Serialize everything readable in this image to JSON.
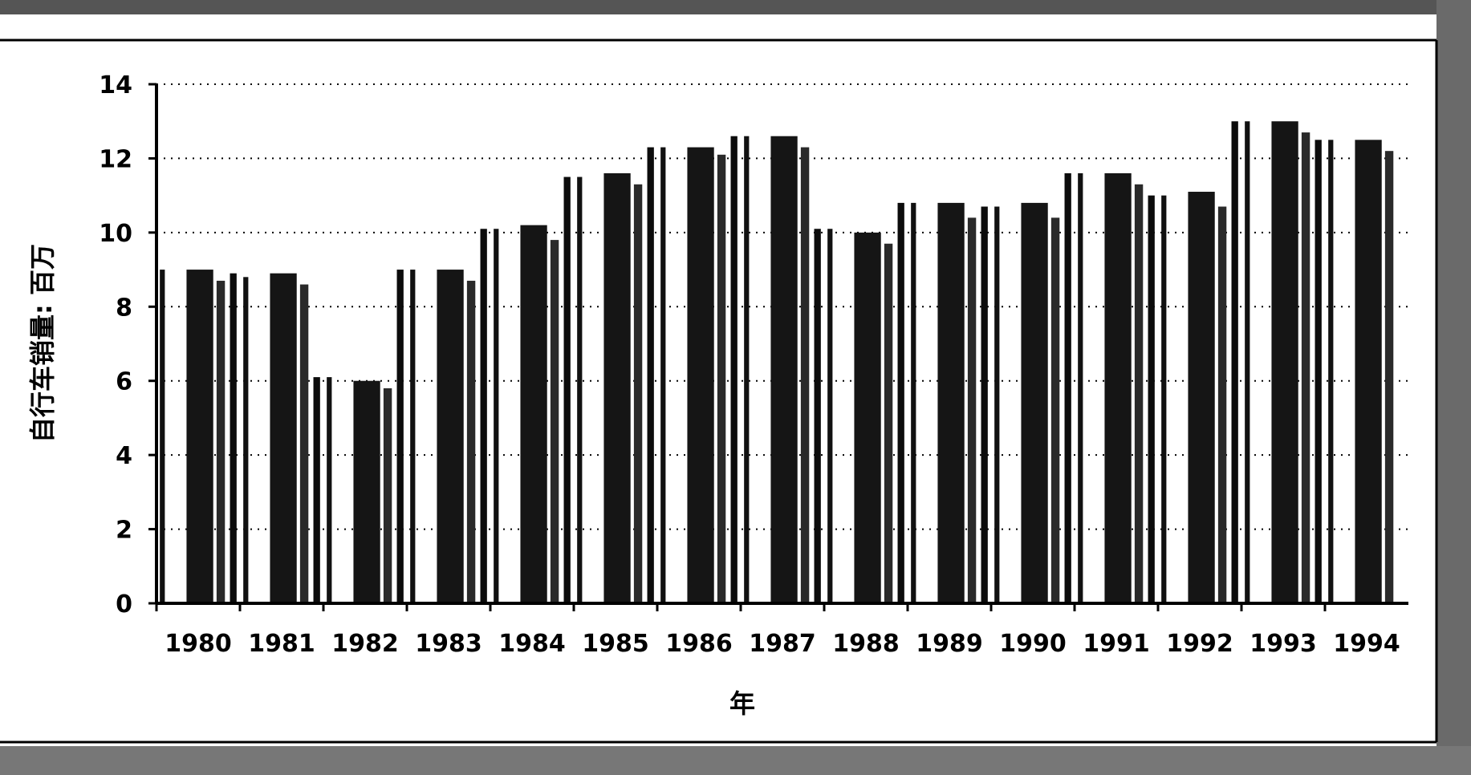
{
  "chart_data": {
    "type": "bar",
    "title": "",
    "xlabel": "年",
    "ylabel": "自行车销量: 百万",
    "ylim": [
      0,
      14
    ],
    "yticks": [
      0,
      2,
      4,
      6,
      8,
      10,
      12,
      14
    ],
    "grid": true,
    "legend": "none",
    "categories": [
      "1980",
      "1981",
      "1982",
      "1983",
      "1984",
      "1985",
      "1986",
      "1987",
      "1988",
      "1989",
      "1990",
      "1991",
      "1992",
      "1993",
      "1994"
    ],
    "colors": [
      "#111111",
      "#151515",
      "#2a2a2a",
      "#0c0c0c"
    ],
    "series": [
      {
        "values": [
          9.0,
          8.8,
          6.1,
          9.0,
          10.1,
          11.5,
          12.3,
          12.6,
          10.1,
          10.8,
          10.7,
          11.6,
          11.0,
          13.0,
          12.5
        ]
      },
      {
        "values": [
          9.0,
          8.9,
          6.0,
          9.0,
          10.2,
          11.6,
          12.3,
          12.6,
          10.0,
          10.8,
          10.8,
          11.6,
          11.1,
          13.0,
          12.5
        ]
      },
      {
        "values": [
          8.7,
          8.6,
          5.8,
          8.7,
          9.8,
          11.3,
          12.1,
          12.3,
          9.7,
          10.4,
          10.4,
          11.3,
          10.7,
          12.7,
          12.2
        ]
      },
      {
        "values": [
          8.9,
          6.1,
          9.0,
          10.1,
          11.5,
          12.3,
          12.6,
          10.1,
          10.8,
          10.7,
          11.6,
          11.0,
          13.0,
          12.5,
          0
        ]
      }
    ]
  }
}
